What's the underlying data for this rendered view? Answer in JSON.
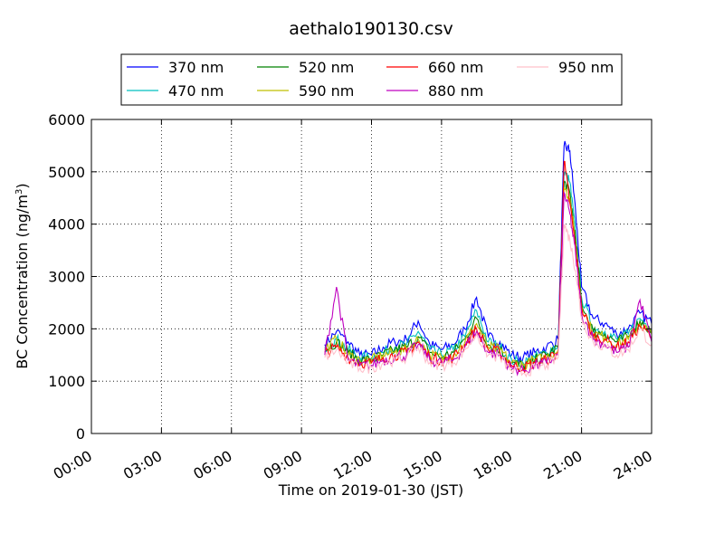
{
  "chart_data": {
    "type": "line",
    "title": "aethalo190130.csv",
    "xlabel": "Time on 2019-01-30 (JST)",
    "ylabel_main": "BC Concentration (ng/m",
    "ylabel_sup": "3",
    "ylabel_end": ")",
    "xlim": [
      0,
      24
    ],
    "ylim": [
      0,
      6000
    ],
    "x_ticks": [
      0,
      3,
      6,
      9,
      12,
      15,
      18,
      21,
      24
    ],
    "x_tick_labels": [
      "00:00",
      "03:00",
      "06:00",
      "09:00",
      "12:00",
      "15:00",
      "18:00",
      "21:00",
      "24:00"
    ],
    "y_ticks": [
      0,
      1000,
      2000,
      3000,
      4000,
      5000,
      6000
    ],
    "y_tick_labels": [
      "0",
      "1000",
      "2000",
      "3000",
      "4000",
      "5000",
      "6000"
    ],
    "grid": true,
    "legend_placement": "top-center",
    "x": [
      10.0,
      10.5,
      11.0,
      11.5,
      12.0,
      12.5,
      13.0,
      13.5,
      14.0,
      14.5,
      15.0,
      15.5,
      16.0,
      16.5,
      17.0,
      17.5,
      18.0,
      18.5,
      19.0,
      19.5,
      20.0,
      20.25,
      20.5,
      20.75,
      21.0,
      21.5,
      22.0,
      22.5,
      23.0,
      23.5,
      24.0
    ],
    "series": [
      {
        "name": "370 nm",
        "color": "#0000ff",
        "values": [
          1700,
          1950,
          1750,
          1500,
          1500,
          1650,
          1750,
          1800,
          2150,
          1700,
          1600,
          1700,
          2000,
          2600,
          1850,
          1750,
          1500,
          1450,
          1550,
          1650,
          1800,
          5500,
          5400,
          4200,
          2800,
          2200,
          2100,
          1900,
          2000,
          2300,
          2100
        ]
      },
      {
        "name": "470 nm",
        "color": "#00bfbf",
        "values": [
          1650,
          1800,
          1600,
          1450,
          1450,
          1550,
          1650,
          1700,
          1950,
          1600,
          1500,
          1600,
          1850,
          2350,
          1750,
          1650,
          1400,
          1350,
          1450,
          1550,
          1700,
          5000,
          4800,
          3800,
          2600,
          2000,
          1950,
          1800,
          1900,
          2200,
          2000
        ]
      },
      {
        "name": "520 nm",
        "color": "#008000",
        "values": [
          1600,
          1750,
          1550,
          1400,
          1400,
          1500,
          1600,
          1650,
          1850,
          1550,
          1450,
          1550,
          1800,
          2200,
          1700,
          1600,
          1350,
          1300,
          1400,
          1500,
          1650,
          4800,
          4600,
          3700,
          2500,
          1950,
          1900,
          1750,
          1850,
          2150,
          1950
        ]
      },
      {
        "name": "590 nm",
        "color": "#bfbf00",
        "values": [
          1600,
          1800,
          1500,
          1400,
          1400,
          1500,
          1550,
          1600,
          1800,
          1500,
          1450,
          1500,
          1750,
          2100,
          1650,
          1600,
          1350,
          1300,
          1400,
          1450,
          1600,
          4700,
          4500,
          3600,
          2450,
          1900,
          1850,
          1700,
          1800,
          2100,
          1900
        ]
      },
      {
        "name": "660 nm",
        "color": "#ff0000",
        "values": [
          1550,
          1650,
          1450,
          1350,
          1350,
          1450,
          1500,
          1550,
          1750,
          1450,
          1400,
          1450,
          1700,
          2000,
          1600,
          1550,
          1300,
          1250,
          1350,
          1400,
          1550,
          5200,
          4400,
          3500,
          2400,
          1850,
          1800,
          1650,
          1750,
          2050,
          1850
        ]
      },
      {
        "name": "880 nm",
        "color": "#bf00bf",
        "values": [
          1500,
          2800,
          1400,
          1300,
          1300,
          1400,
          1450,
          1500,
          1700,
          1400,
          1350,
          1400,
          1650,
          1950,
          1550,
          1500,
          1250,
          1200,
          1300,
          1350,
          1500,
          4600,
          4200,
          3400,
          2300,
          1800,
          1700,
          1550,
          1650,
          2550,
          1750
        ]
      },
      {
        "name": "950 nm",
        "color": "#ffc0cb",
        "values": [
          1450,
          1600,
          1350,
          1250,
          1250,
          1350,
          1400,
          1450,
          1650,
          1350,
          1300,
          1350,
          1600,
          1900,
          1500,
          1450,
          1200,
          1150,
          1250,
          1300,
          1450,
          4000,
          3700,
          3100,
          2200,
          1750,
          1650,
          1500,
          1600,
          2000,
          1700
        ]
      }
    ]
  }
}
